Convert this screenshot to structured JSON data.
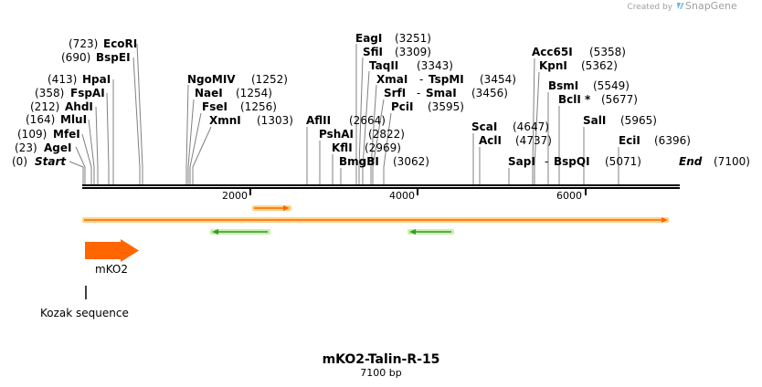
{
  "credit": {
    "created_by": "Created by",
    "brand": "SnapGene"
  },
  "map": {
    "name": "mKO2-Talin-R-15",
    "length_label": "7100 bp",
    "length": 7100
  },
  "ticks": [
    "2000",
    "4000",
    "6000"
  ],
  "ends": {
    "start": {
      "pos": "(0)",
      "name": "Start"
    },
    "end": {
      "name": "End",
      "pos": "(7100)"
    }
  },
  "sites": [
    {
      "id": "agei",
      "name": "AgeI",
      "pos": "(23)"
    },
    {
      "id": "mfei",
      "name": "MfeI",
      "pos": "(109)"
    },
    {
      "id": "mlui",
      "name": "MluI",
      "pos": "(164)"
    },
    {
      "id": "ahdi",
      "name": "AhdI",
      "pos": "(212)"
    },
    {
      "id": "fspai",
      "name": "FspAI",
      "pos": "(358)"
    },
    {
      "id": "hpai",
      "name": "HpaI",
      "pos": "(413)"
    },
    {
      "id": "bspei",
      "name": "BspEI",
      "pos": "(690)"
    },
    {
      "id": "ecori",
      "name": "EcoRI",
      "pos": "(723)"
    },
    {
      "id": "ngomiv",
      "name": "NgoMIV",
      "pos": "(1252)"
    },
    {
      "id": "naei",
      "name": "NaeI",
      "pos": "(1254)"
    },
    {
      "id": "fsei",
      "name": "FseI",
      "pos": "(1256)"
    },
    {
      "id": "xmni",
      "name": "XmnI",
      "pos": "(1303)"
    },
    {
      "id": "aflii",
      "name": "AflII",
      "pos": "(2664)"
    },
    {
      "id": "pshai",
      "name": "PshAI",
      "pos": "(2822)"
    },
    {
      "id": "kfli",
      "name": "KflI",
      "pos": "(2969)"
    },
    {
      "id": "bmgbi",
      "name": "BmgBI",
      "pos": "(3062)"
    },
    {
      "id": "eagi",
      "name": "EagI",
      "pos": "(3251)"
    },
    {
      "id": "sfii",
      "name": "SfiI",
      "pos": "(3309)"
    },
    {
      "id": "taqii",
      "name": "TaqII",
      "pos": "(3343)"
    },
    {
      "id": "xmai",
      "name": "XmaI",
      "dash": "-",
      "name2": "TspMI",
      "pos": "(3454)"
    },
    {
      "id": "srfi",
      "name": "SrfI",
      "dash": "-",
      "name2": "SmaI",
      "pos": "(3456)"
    },
    {
      "id": "pcii",
      "name": "PciI",
      "pos": "(3595)"
    },
    {
      "id": "scai",
      "name": "ScaI",
      "pos": "(4647)"
    },
    {
      "id": "acli",
      "name": "AclI",
      "pos": "(4737)"
    },
    {
      "id": "sapi",
      "name": "SapI",
      "dash": "-",
      "name2": "BspQI",
      "pos": "(5071)"
    },
    {
      "id": "acc65i",
      "name": "Acc65I",
      "pos": "(5358)"
    },
    {
      "id": "kpni",
      "name": "KpnI",
      "pos": "(5362)"
    },
    {
      "id": "bsmi",
      "name": "BsmI",
      "pos": "(5549)"
    },
    {
      "id": "bcli",
      "name": "BclI *",
      "pos": "(5677)"
    },
    {
      "id": "sali",
      "name": "SalI",
      "pos": "(5965)"
    },
    {
      "id": "ecii",
      "name": "EciI",
      "pos": "(6396)"
    }
  ],
  "features": [
    {
      "id": "mko2",
      "label": "mKO2",
      "start": 1,
      "end": 660,
      "direction": "forward",
      "color": "#ff6600"
    },
    {
      "id": "kozak",
      "label": "Kozak sequence",
      "start": 1,
      "end": 6
    }
  ],
  "colors": {
    "forward_bar": "#ff6600",
    "reverse_bar": "#339933",
    "outline": "#ffd38a"
  }
}
